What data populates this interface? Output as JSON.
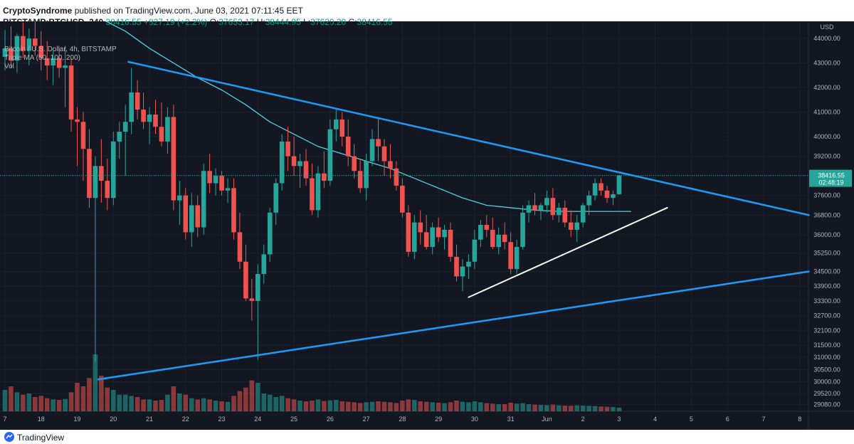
{
  "header": {
    "publisher": "CryptoSyndrome",
    "published_text": " published on TradingView.com, June 03, 2021 07:11:45 EET",
    "symbol": "BITSTAMP:BTCUSD, 240",
    "last": "38416.55",
    "change": "+827.19 (+2.2%)",
    "open_label": "O:",
    "open": "37653.17",
    "high_label": "H:",
    "high": "38444.95",
    "low_label": "L:",
    "low": "37620.20",
    "close_label": "C:",
    "close": "38416.55"
  },
  "legend": {
    "title": "Bitcoin / U.S. Dollar, 4h, BITSTAMP",
    "ma": "Triple MA (50, 100, 200)",
    "vol": "Vol"
  },
  "price_axis": {
    "currency": "USD",
    "last_price_label": "38416.55",
    "countdown_label": "02:48:19"
  },
  "footer": {
    "brand": "TradingView"
  },
  "colors": {
    "background": "#131722",
    "up": "#26a69a",
    "down": "#ef5350",
    "trendline": "#2196f3",
    "support": "#ffffff",
    "ma": "#4dd0e1",
    "grid": "#1e2230"
  },
  "chart_data": {
    "type": "candlestick",
    "timeframe": "4h",
    "ylim": [
      28800,
      44700
    ],
    "y_ticks": [
      44000,
      43000,
      42000,
      41000,
      40000,
      39200,
      38400,
      37600,
      36800,
      36000,
      35250,
      34500,
      33900,
      33300,
      32700,
      32100,
      31500,
      31000,
      30500,
      30000,
      29520,
      29080
    ],
    "x_ticks": [
      {
        "label": "7",
        "i": 0
      },
      {
        "label": "18",
        "i": 6
      },
      {
        "label": "19",
        "i": 12
      },
      {
        "label": "20",
        "i": 18
      },
      {
        "label": "21",
        "i": 24
      },
      {
        "label": "22",
        "i": 30
      },
      {
        "label": "23",
        "i": 36
      },
      {
        "label": "24",
        "i": 42
      },
      {
        "label": "25",
        "i": 48
      },
      {
        "label": "26",
        "i": 54
      },
      {
        "label": "27",
        "i": 60
      },
      {
        "label": "28",
        "i": 66
      },
      {
        "label": "29",
        "i": 72
      },
      {
        "label": "30",
        "i": 78
      },
      {
        "label": "31",
        "i": 84
      },
      {
        "label": "Jun",
        "i": 90
      },
      {
        "label": "2",
        "i": 96
      },
      {
        "label": "3",
        "i": 102
      },
      {
        "label": "4",
        "i": 108
      },
      {
        "label": "5",
        "i": 114
      },
      {
        "label": "6",
        "i": 120
      },
      {
        "label": "7",
        "i": 126
      },
      {
        "label": "8",
        "i": 132
      }
    ],
    "candles": [
      [
        43250,
        44350,
        42700,
        43600,
        900
      ],
      [
        43600,
        44500,
        42800,
        43100,
        1050
      ],
      [
        43100,
        44200,
        42600,
        44100,
        800
      ],
      [
        44100,
        44650,
        43200,
        43500,
        700
      ],
      [
        43500,
        44400,
        42900,
        44000,
        750
      ],
      [
        44000,
        44700,
        43300,
        43700,
        600
      ],
      [
        43700,
        44300,
        42700,
        43200,
        650
      ],
      [
        43200,
        43900,
        42300,
        42900,
        550
      ],
      [
        42900,
        43500,
        42100,
        43200,
        500
      ],
      [
        43200,
        43600,
        42400,
        42800,
        480
      ],
      [
        42800,
        43700,
        41200,
        42900,
        520
      ],
      [
        42900,
        43200,
        40200,
        40700,
        800
      ],
      [
        40700,
        41200,
        38800,
        40600,
        1200
      ],
      [
        40600,
        41000,
        38200,
        39500,
        1050
      ],
      [
        39500,
        40300,
        37100,
        37500,
        1400
      ],
      [
        37500,
        39200,
        30800,
        38800,
        2400
      ],
      [
        38800,
        39900,
        37300,
        38200,
        1500
      ],
      [
        38200,
        39100,
        37000,
        37500,
        1000
      ],
      [
        37500,
        40200,
        37200,
        39800,
        900
      ],
      [
        39800,
        40600,
        39100,
        40200,
        700
      ],
      [
        40200,
        41300,
        38400,
        40600,
        700
      ],
      [
        40600,
        42800,
        40100,
        41800,
        650
      ],
      [
        41800,
        42300,
        40700,
        41100,
        600
      ],
      [
        41100,
        41800,
        40300,
        40600,
        500
      ],
      [
        40600,
        41200,
        39700,
        40900,
        500
      ],
      [
        40900,
        41500,
        40100,
        40400,
        450
      ],
      [
        40400,
        41400,
        39600,
        39800,
        480
      ],
      [
        39800,
        41200,
        39300,
        40800,
        700
      ],
      [
        40800,
        41300,
        37000,
        37400,
        1050
      ],
      [
        37400,
        38200,
        36400,
        37600,
        750
      ],
      [
        37600,
        37900,
        35800,
        36100,
        700
      ],
      [
        36100,
        37700,
        35500,
        37200,
        550
      ],
      [
        37200,
        37600,
        35900,
        36300,
        500
      ],
      [
        36300,
        38900,
        36000,
        38600,
        550
      ],
      [
        38600,
        39300,
        37700,
        38100,
        500
      ],
      [
        38100,
        38700,
        37600,
        38400,
        450
      ],
      [
        38400,
        38600,
        37600,
        37800,
        420
      ],
      [
        37800,
        38300,
        37300,
        37900,
        400
      ],
      [
        37900,
        38300,
        35800,
        36100,
        650
      ],
      [
        36100,
        36900,
        34600,
        34900,
        850
      ],
      [
        34900,
        35600,
        33300,
        33400,
        1000
      ],
      [
        33400,
        34200,
        32500,
        33300,
        1300
      ],
      [
        33300,
        34800,
        30900,
        34400,
        1200
      ],
      [
        34400,
        35600,
        34000,
        35200,
        750
      ],
      [
        35200,
        37100,
        34900,
        36900,
        700
      ],
      [
        36900,
        38300,
        36400,
        38100,
        600
      ],
      [
        38100,
        40100,
        37800,
        39800,
        650
      ],
      [
        39800,
        40400,
        38600,
        39200,
        550
      ],
      [
        39200,
        40000,
        38400,
        38800,
        500
      ],
      [
        38800,
        39300,
        37900,
        39000,
        450
      ],
      [
        39000,
        39500,
        38000,
        38300,
        420
      ],
      [
        38300,
        38900,
        36800,
        37000,
        450
      ],
      [
        37000,
        38800,
        36700,
        38500,
        500
      ],
      [
        38500,
        39400,
        37900,
        38200,
        430
      ],
      [
        38200,
        40700,
        38000,
        40300,
        460
      ],
      [
        40300,
        41100,
        39800,
        40700,
        480
      ],
      [
        40700,
        41000,
        39600,
        40000,
        420
      ],
      [
        40000,
        40700,
        38800,
        39200,
        400
      ],
      [
        39200,
        39700,
        38300,
        38600,
        380
      ],
      [
        38600,
        39100,
        37700,
        37900,
        350
      ],
      [
        37900,
        39300,
        37400,
        39000,
        380
      ],
      [
        39000,
        40300,
        38800,
        39900,
        400
      ],
      [
        39900,
        40800,
        39000,
        39600,
        420
      ],
      [
        39600,
        39900,
        38400,
        39000,
        400
      ],
      [
        39000,
        39700,
        38300,
        38700,
        380
      ],
      [
        38700,
        39000,
        37800,
        38000,
        350
      ],
      [
        38000,
        38300,
        36700,
        36900,
        450
      ],
      [
        36900,
        37200,
        35100,
        35300,
        500
      ],
      [
        35300,
        36800,
        35000,
        36500,
        480
      ],
      [
        36500,
        37000,
        35600,
        36100,
        420
      ],
      [
        36100,
        36800,
        35400,
        35500,
        400
      ],
      [
        35500,
        36500,
        35200,
        36300,
        380
      ],
      [
        36300,
        36700,
        35700,
        35900,
        360
      ],
      [
        35900,
        36400,
        35400,
        36200,
        340
      ],
      [
        36200,
        36500,
        34900,
        35100,
        380
      ],
      [
        35100,
        35600,
        34100,
        34300,
        450
      ],
      [
        34300,
        35000,
        33700,
        34700,
        400
      ],
      [
        34700,
        35200,
        34200,
        34900,
        380
      ],
      [
        34900,
        36200,
        34600,
        35800,
        420
      ],
      [
        35800,
        36600,
        35500,
        36400,
        380
      ],
      [
        36400,
        36800,
        35900,
        36200,
        340
      ],
      [
        36200,
        36700,
        35400,
        35500,
        320
      ],
      [
        35500,
        36300,
        35200,
        36000,
        300
      ],
      [
        36000,
        36500,
        35400,
        35700,
        300
      ],
      [
        35700,
        36100,
        34400,
        34600,
        360
      ],
      [
        34600,
        35800,
        34400,
        35500,
        320
      ],
      [
        35500,
        37200,
        35400,
        36900,
        340
      ],
      [
        36900,
        37400,
        36500,
        37200,
        300
      ],
      [
        37200,
        37700,
        36800,
        37000,
        280
      ],
      [
        37000,
        37300,
        36600,
        37200,
        270
      ],
      [
        37200,
        37800,
        36900,
        37500,
        260
      ],
      [
        37500,
        37900,
        36600,
        36800,
        280
      ],
      [
        36800,
        37300,
        36500,
        37100,
        250
      ],
      [
        37100,
        37400,
        36300,
        36500,
        240
      ],
      [
        36500,
        37000,
        35900,
        36200,
        230
      ],
      [
        36200,
        36800,
        35700,
        36500,
        250
      ],
      [
        36500,
        37300,
        36300,
        37200,
        240
      ],
      [
        37200,
        37800,
        36800,
        37600,
        230
      ],
      [
        37600,
        38300,
        37400,
        38100,
        220
      ],
      [
        38100,
        38300,
        37600,
        37800,
        200
      ],
      [
        37800,
        38000,
        37300,
        37500,
        190
      ],
      [
        37500,
        37800,
        37200,
        37650,
        180
      ],
      [
        37653.17,
        38444.95,
        37620.2,
        38416.55,
        150
      ]
    ],
    "volume_max": 2400,
    "ma_line": [
      [
        16,
        44800
      ],
      [
        20,
        44300
      ],
      [
        24,
        43600
      ],
      [
        28,
        43000
      ],
      [
        32,
        42400
      ],
      [
        36,
        41900
      ],
      [
        40,
        41300
      ],
      [
        44,
        40600
      ],
      [
        48,
        40100
      ],
      [
        52,
        39600
      ],
      [
        56,
        39300
      ],
      [
        60,
        39000
      ],
      [
        64,
        38700
      ],
      [
        68,
        38300
      ],
      [
        72,
        37900
      ],
      [
        76,
        37500
      ],
      [
        80,
        37200
      ],
      [
        84,
        37100
      ],
      [
        88,
        37000
      ],
      [
        92,
        36950
      ],
      [
        96,
        36950
      ],
      [
        100,
        36950
      ],
      [
        104,
        36950
      ]
    ],
    "trendlines": [
      {
        "name": "descending-resistance",
        "color": "#2196f3",
        "start": [
          20.5,
          43050
        ],
        "end": [
          133.5,
          36800
        ]
      },
      {
        "name": "ascending-support",
        "color": "#2196f3",
        "start": [
          15.5,
          30100
        ],
        "end": [
          133.5,
          34500
        ]
      },
      {
        "name": "short-term-support",
        "color": "#ffffff",
        "start": [
          77,
          33450
        ],
        "end": [
          110,
          37100
        ]
      }
    ]
  }
}
